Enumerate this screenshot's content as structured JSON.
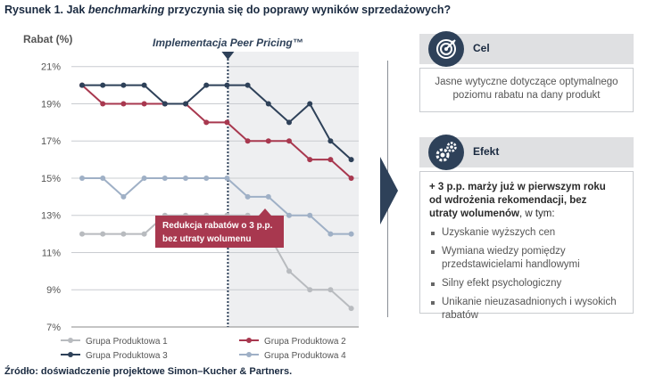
{
  "header": {
    "title_prefix": "Rysunek 1. Jak ",
    "title_em": "benchmarking",
    "title_suffix": " przyczynia się do poprawy wyników sprzedażowych?"
  },
  "source": "Źródło: doświadczenie projektowe Simon–Kucher & Partners.",
  "chart_data": {
    "type": "line",
    "ylabel": "Rabat (%)",
    "y_ticks": [
      "21%",
      "19%",
      "17%",
      "15%",
      "13%",
      "11%",
      "9%",
      "7%"
    ],
    "ylim": [
      7,
      21.8
    ],
    "grid": true,
    "legend_position": "bottom",
    "implementation_label": "Implementacja Peer Pricing™",
    "implementation_index": 7,
    "annotation": {
      "line1": "Redukcja rabatów o 3 p.p.",
      "line2": "bez utraty wolumenu"
    },
    "x": [
      0,
      1,
      2,
      3,
      4,
      5,
      6,
      7,
      8,
      9,
      10,
      11,
      12,
      13
    ],
    "series": [
      {
        "name": "Grupa Produktowa 1",
        "color": "#b8bbbf",
        "values": [
          12,
          12,
          12,
          12,
          13,
          13,
          13,
          13,
          13,
          12,
          10,
          9,
          9,
          8
        ]
      },
      {
        "name": "Grupa Produktowa 2",
        "color": "#a8384f",
        "values": [
          20,
          19,
          19,
          19,
          19,
          19,
          18,
          18,
          17,
          17,
          17,
          16,
          16,
          15
        ]
      },
      {
        "name": "Grupa Produktowa 3",
        "color": "#2e4159",
        "values": [
          20,
          20,
          20,
          20,
          19,
          19,
          20,
          20,
          20,
          19,
          18,
          19,
          17,
          16
        ]
      },
      {
        "name": "Grupa Produktowa 4",
        "color": "#9fb0c6",
        "values": [
          15,
          15,
          14,
          15,
          15,
          15,
          15,
          15,
          14,
          14,
          13,
          13,
          12,
          12
        ]
      }
    ]
  },
  "panel_cel": {
    "heading": "Cel",
    "icon": "target-icon",
    "text_line1": "Jasne wytyczne dotyczące optymalnego",
    "text_line2": "poziomu rabatu na dany produkt"
  },
  "panel_efekt": {
    "heading": "Efekt",
    "icon": "gears-icon",
    "lead_line1": "+ 3 p.p. marży już w pierwszym roku",
    "lead_line2": "od wdrożenia rekomendacji, bez",
    "lead_bold3": "utraty wolumenów",
    "lead_rest3": ", w tym:",
    "bullets": [
      {
        "line1": "Uzyskanie wyższych cen",
        "line2": ""
      },
      {
        "line1": "Wymiana wiedzy pomiędzy",
        "line2": "przedstawicielami handlowymi"
      },
      {
        "line1": "Silny efekt psychologiczny",
        "line2": ""
      },
      {
        "line1": "Unikanie nieuzasadnionych i wysokich",
        "line2": "rabatów"
      }
    ]
  }
}
